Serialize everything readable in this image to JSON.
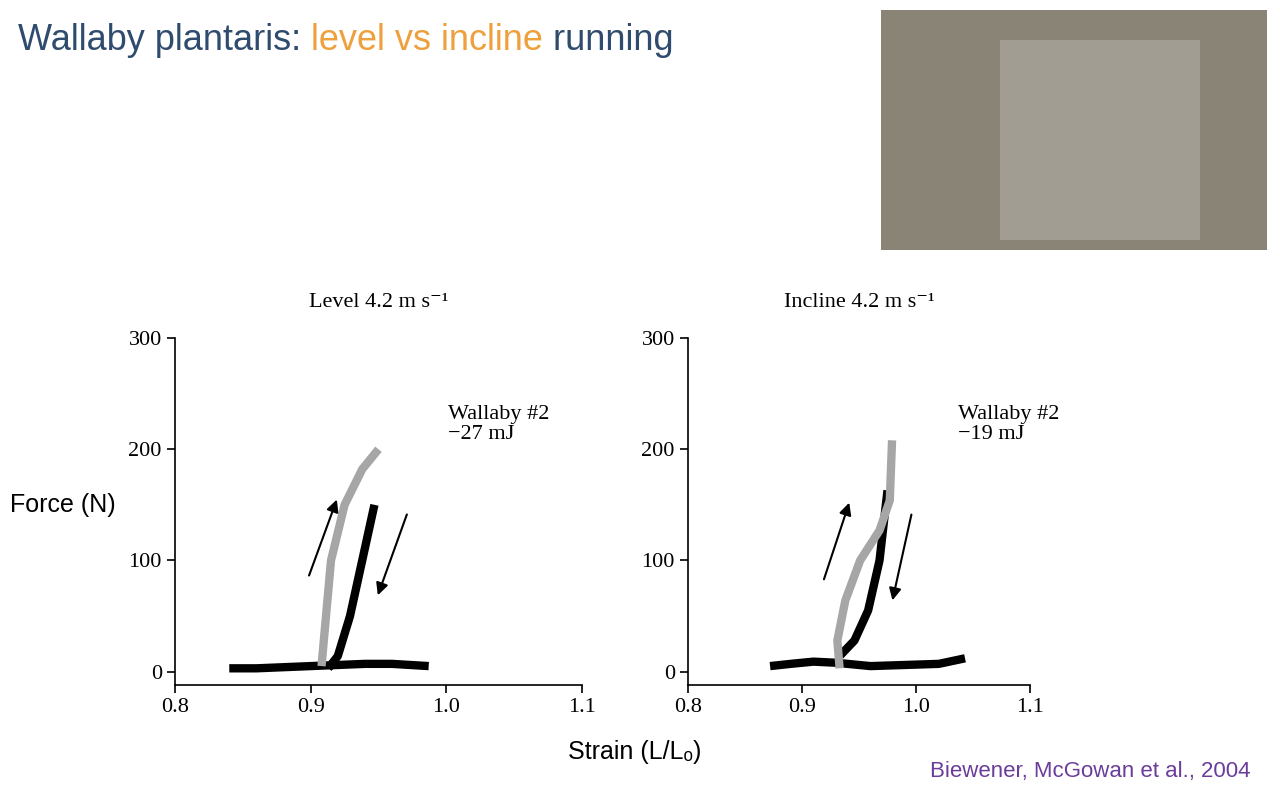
{
  "slide": {
    "title": [
      {
        "text": "Wallaby plantaris: ",
        "color": "#2f4b6e"
      },
      {
        "text": "level vs incline",
        "color": "#eea03c"
      },
      {
        "text": " running",
        "color": "#2f4b6e"
      }
    ],
    "ylabel": "Force (N)",
    "xlabel": "Strain (L/Lₒ)",
    "source": {
      "text": "Biewener, McGowan et al., 2004",
      "color": "#6a3d9a"
    }
  },
  "chart_data": [
    {
      "type": "line",
      "title": "Level 4.2 m s⁻¹",
      "annotations": [
        "Wallaby #2",
        "−27 mJ"
      ],
      "xlim": [
        0.8,
        1.1
      ],
      "xticks": [
        0.8,
        0.9,
        1.0,
        1.1
      ],
      "ylim": [
        -12,
        300
      ],
      "yticks": [
        0,
        100,
        200,
        300
      ],
      "series": [
        {
          "color": "#000000",
          "x": [
            0.84,
            0.86,
            0.88,
            0.9,
            0.92,
            0.94,
            0.96,
            0.987
          ],
          "values": [
            3,
            3,
            4,
            5,
            6,
            7,
            7,
            5
          ]
        },
        {
          "color": "#000000",
          "x": [
            0.947,
            0.938,
            0.929,
            0.92,
            0.913
          ],
          "values": [
            150,
            100,
            50,
            14,
            3
          ]
        },
        {
          "color": "#a6a6a6",
          "x": [
            0.908,
            0.911,
            0.915,
            0.925,
            0.938,
            0.95
          ],
          "values": [
            5,
            46,
            100,
            150,
            182,
            200
          ]
        }
      ]
    },
    {
      "type": "line",
      "title": "Incline 4.2 m s⁻¹",
      "annotations": [
        "Wallaby #2",
        "−19 mJ"
      ],
      "xlim": [
        0.8,
        1.1
      ],
      "xticks": [
        0.8,
        0.9,
        1.0,
        1.1
      ],
      "ylim": [
        -12,
        300
      ],
      "yticks": [
        0,
        100,
        200,
        300
      ],
      "series": [
        {
          "color": "#000000",
          "x": [
            0.872,
            0.89,
            0.91,
            0.93,
            0.96,
            0.99,
            1.02,
            1.043
          ],
          "values": [
            5,
            7,
            9,
            8,
            5,
            6,
            7,
            12
          ]
        },
        {
          "color": "#000000",
          "x": [
            0.975,
            0.968,
            0.958,
            0.946,
            0.933
          ],
          "values": [
            163,
            100,
            55,
            28,
            14
          ]
        },
        {
          "color": "#a6a6a6",
          "x": [
            0.933,
            0.931,
            0.938,
            0.951,
            0.968,
            0.977,
            0.979
          ],
          "values": [
            3,
            28,
            64,
            100,
            127,
            154,
            208
          ]
        }
      ]
    }
  ]
}
